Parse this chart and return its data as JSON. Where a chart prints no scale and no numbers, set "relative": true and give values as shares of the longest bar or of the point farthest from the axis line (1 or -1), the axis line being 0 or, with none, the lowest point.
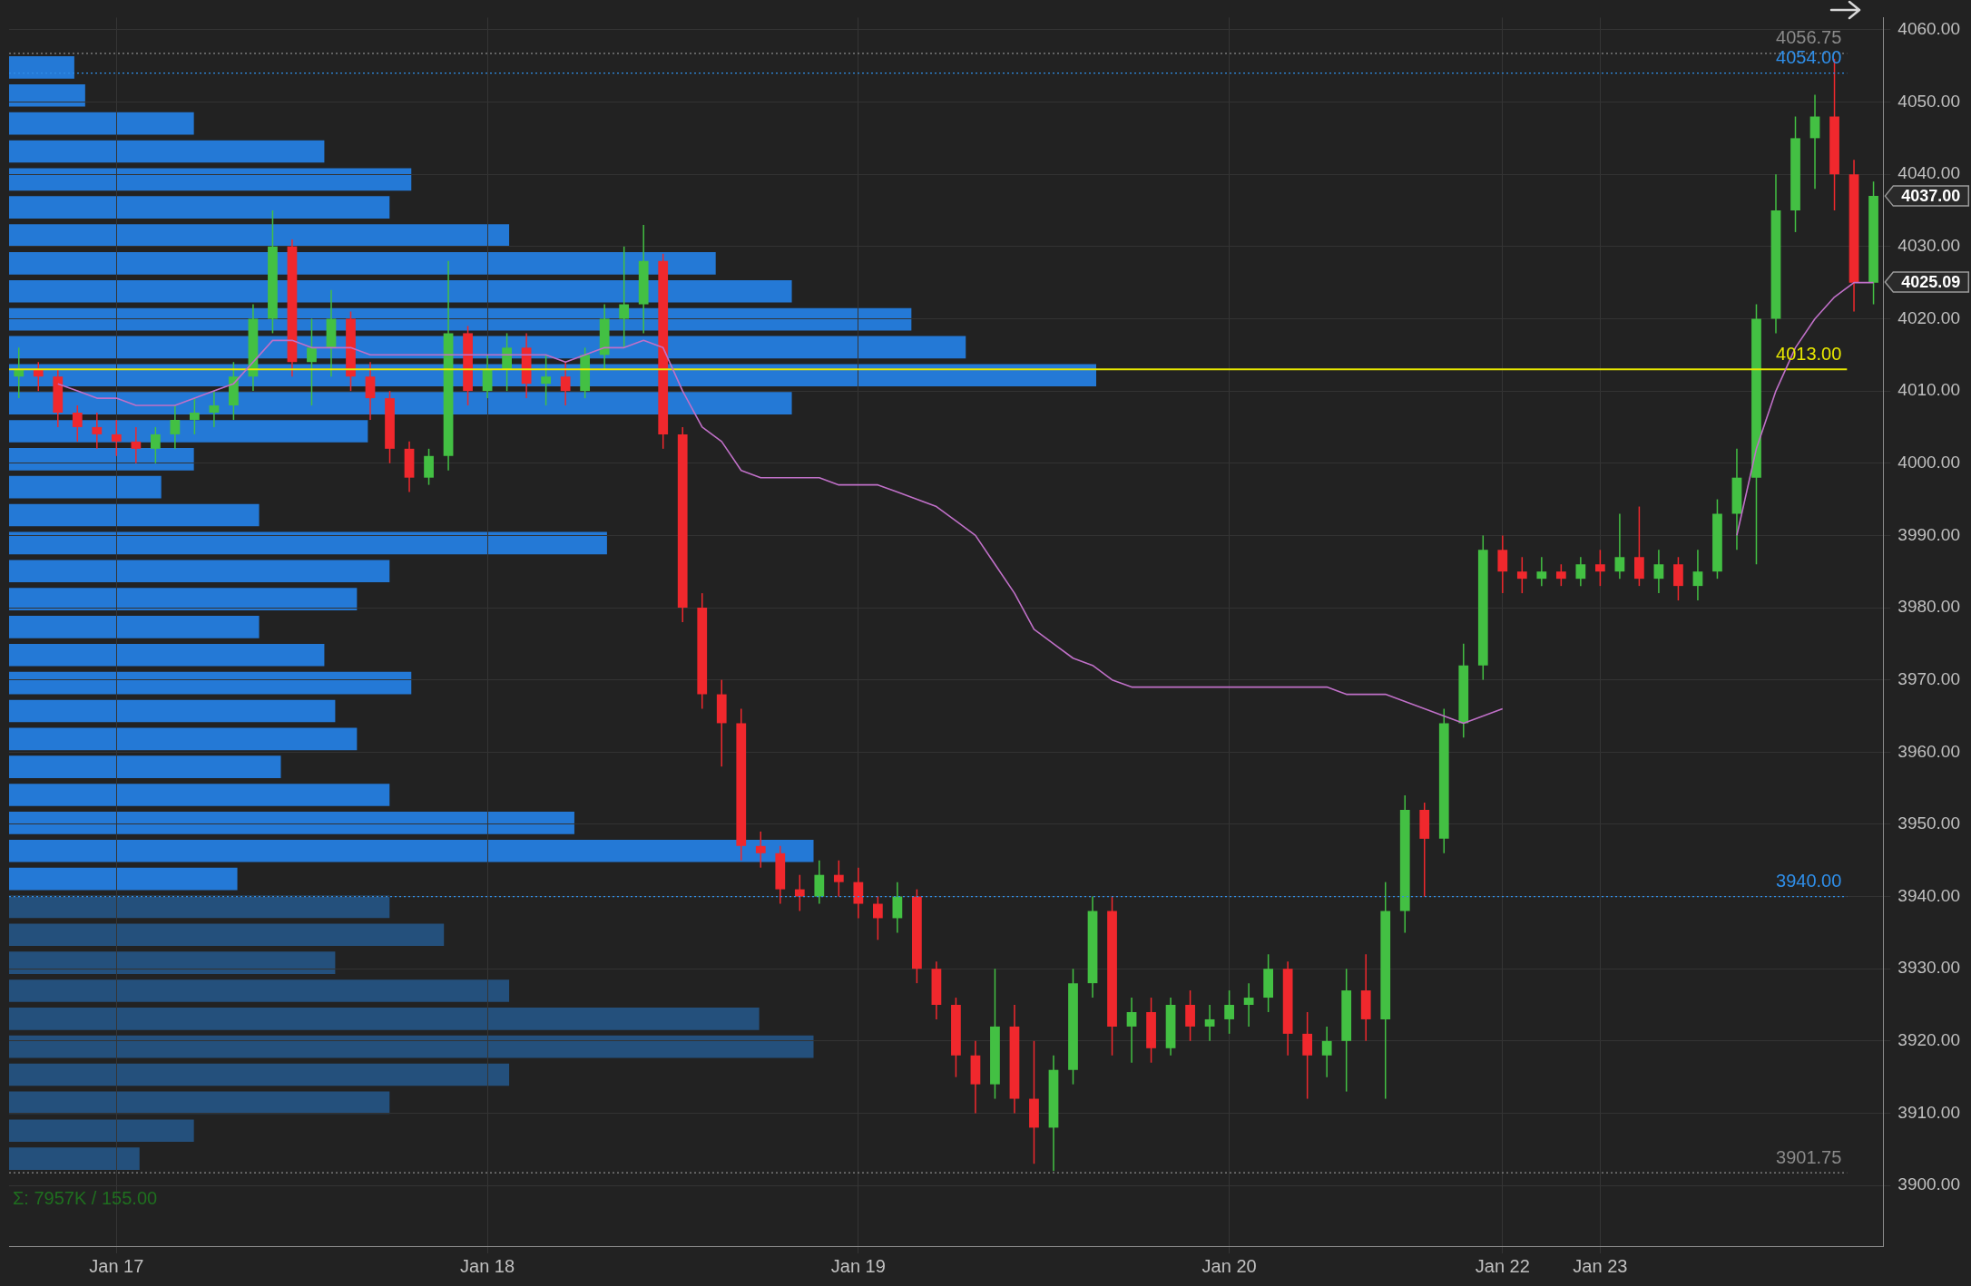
{
  "chart_data": [
    {
      "type": "candlestick",
      "categories": [
        null,
        null,
        null,
        null,
        null,
        "Jan 17",
        null,
        null,
        null,
        null,
        null,
        null,
        null,
        null,
        null,
        null,
        null,
        null,
        null,
        null,
        null,
        null,
        null,
        null,
        "Jan 18",
        null,
        null,
        null,
        null,
        null,
        null,
        null,
        null,
        null,
        null,
        null,
        null,
        null,
        null,
        null,
        null,
        null,
        null,
        "Jan 19",
        null,
        null,
        null,
        null,
        null,
        null,
        null,
        null,
        null,
        null,
        null,
        null,
        null,
        null,
        null,
        null,
        null,
        null,
        "Jan 20",
        null,
        null,
        null,
        null,
        null,
        null,
        null,
        null,
        null,
        null,
        null,
        null,
        null,
        "Jan 22",
        null,
        null,
        null,
        null,
        "Jan 23",
        null,
        null,
        null,
        null,
        null,
        null,
        null,
        null,
        null,
        null,
        null,
        null,
        null,
        null
      ],
      "ohlc": [
        [
          4012,
          4016,
          4009,
          4013
        ],
        [
          4013,
          4014,
          4010,
          4012
        ],
        [
          4012,
          4013,
          4005,
          4007
        ],
        [
          4007,
          4008,
          4003,
          4005
        ],
        [
          4005,
          4007,
          4002,
          4004
        ],
        [
          4004,
          4006,
          4001,
          4003
        ],
        [
          4003,
          4005,
          4000,
          4002
        ],
        [
          4002,
          4005,
          4000,
          4004
        ],
        [
          4004,
          4008,
          4002,
          4006
        ],
        [
          4006,
          4009,
          4004,
          4007
        ],
        [
          4007,
          4010,
          4005,
          4008
        ],
        [
          4008,
          4014,
          4006,
          4012
        ],
        [
          4012,
          4022,
          4010,
          4020
        ],
        [
          4020,
          4035,
          4018,
          4030
        ],
        [
          4030,
          4031,
          4012,
          4014
        ],
        [
          4014,
          4020,
          4008,
          4016
        ],
        [
          4016,
          4024,
          4012,
          4020
        ],
        [
          4020,
          4021,
          4010,
          4012
        ],
        [
          4012,
          4014,
          4006,
          4009
        ],
        [
          4009,
          4010,
          4000,
          4002
        ],
        [
          4002,
          4003,
          3996,
          3998
        ],
        [
          3998,
          4002,
          3997,
          4001
        ],
        [
          4001,
          4028,
          3999,
          4018
        ],
        [
          4018,
          4019,
          4008,
          4010
        ],
        [
          4010,
          4015,
          4009,
          4013
        ],
        [
          4013,
          4018,
          4010,
          4016
        ],
        [
          4016,
          4018,
          4009,
          4011
        ],
        [
          4011,
          4015,
          4008,
          4012
        ],
        [
          4012,
          4014,
          4008,
          4010
        ],
        [
          4010,
          4016,
          4009,
          4015
        ],
        [
          4015,
          4022,
          4013,
          4020
        ],
        [
          4020,
          4030,
          4016,
          4022
        ],
        [
          4022,
          4033,
          4018,
          4028
        ],
        [
          4028,
          4029,
          4002,
          4004
        ],
        [
          4004,
          4005,
          3978,
          3980
        ],
        [
          3980,
          3982,
          3966,
          3968
        ],
        [
          3968,
          3970,
          3958,
          3964
        ],
        [
          3964,
          3966,
          3945,
          3947
        ],
        [
          3947,
          3949,
          3944,
          3946
        ],
        [
          3946,
          3947,
          3939,
          3941
        ],
        [
          3941,
          3943,
          3938,
          3940
        ],
        [
          3940,
          3945,
          3939,
          3943
        ],
        [
          3943,
          3945,
          3940,
          3942
        ],
        [
          3942,
          3944,
          3937,
          3939
        ],
        [
          3939,
          3940,
          3934,
          3937
        ],
        [
          3937,
          3942,
          3935,
          3940
        ],
        [
          3940,
          3941,
          3928,
          3930
        ],
        [
          3930,
          3931,
          3923,
          3925
        ],
        [
          3925,
          3926,
          3915,
          3918
        ],
        [
          3918,
          3920,
          3910,
          3914
        ],
        [
          3914,
          3930,
          3912,
          3922
        ],
        [
          3922,
          3925,
          3910,
          3912
        ],
        [
          3912,
          3920,
          3903,
          3908
        ],
        [
          3908,
          3918,
          3902,
          3916
        ],
        [
          3916,
          3930,
          3914,
          3928
        ],
        [
          3928,
          3940,
          3926,
          3938
        ],
        [
          3938,
          3940,
          3918,
          3922
        ],
        [
          3922,
          3926,
          3917,
          3924
        ],
        [
          3924,
          3926,
          3917,
          3919
        ],
        [
          3919,
          3926,
          3918,
          3925
        ],
        [
          3925,
          3927,
          3920,
          3922
        ],
        [
          3922,
          3925,
          3920,
          3923
        ],
        [
          3923,
          3927,
          3921,
          3925
        ],
        [
          3925,
          3928,
          3922,
          3926
        ],
        [
          3926,
          3932,
          3924,
          3930
        ],
        [
          3930,
          3931,
          3918,
          3921
        ],
        [
          3921,
          3924,
          3912,
          3918
        ],
        [
          3918,
          3922,
          3915,
          3920
        ],
        [
          3920,
          3930,
          3913,
          3927
        ],
        [
          3927,
          3932,
          3920,
          3923
        ],
        [
          3923,
          3942,
          3912,
          3938
        ],
        [
          3938,
          3954,
          3935,
          3952
        ],
        [
          3952,
          3953,
          3940,
          3948
        ],
        [
          3948,
          3966,
          3946,
          3964
        ],
        [
          3964,
          3975,
          3962,
          3972
        ],
        [
          3972,
          3990,
          3970,
          3988
        ],
        [
          3988,
          3990,
          3982,
          3985
        ],
        [
          3985,
          3987,
          3982,
          3984
        ],
        [
          3984,
          3987,
          3983,
          3985
        ],
        [
          3985,
          3986,
          3983,
          3984
        ],
        [
          3984,
          3987,
          3983,
          3986
        ],
        [
          3986,
          3988,
          3983,
          3985
        ],
        [
          3985,
          3993,
          3984,
          3987
        ],
        [
          3987,
          3994,
          3983,
          3984
        ],
        [
          3984,
          3988,
          3982,
          3986
        ],
        [
          3986,
          3987,
          3981,
          3983
        ],
        [
          3983,
          3988,
          3981,
          3985
        ],
        [
          3985,
          3995,
          3984,
          3993
        ],
        [
          3993,
          4002,
          3988,
          3998
        ],
        [
          3998,
          4022,
          3986,
          4020
        ],
        [
          4020,
          4040,
          4018,
          4035
        ],
        [
          4035,
          4048,
          4032,
          4045
        ],
        [
          4045,
          4051,
          4038,
          4048
        ],
        [
          4048,
          4056,
          4035,
          4040
        ],
        [
          4040,
          4042,
          4021,
          4025
        ],
        [
          4025,
          4039,
          4022,
          4037
        ]
      ],
      "series": [
        {
          "type": "line",
          "color": "#c070c8",
          "values": [
            null,
            null,
            4011,
            4010,
            4009,
            4009,
            4008,
            4008,
            4008,
            4009,
            4010,
            4011,
            4014,
            4017,
            4017,
            4016,
            4016,
            4016,
            4015,
            4015,
            4015,
            4015,
            4015,
            4015,
            4015,
            4015,
            4015,
            4015,
            4014,
            4015,
            4016,
            4016,
            4017,
            4016,
            4010,
            4005,
            4003,
            3999,
            3998,
            3998,
            3998,
            3998,
            3997,
            3997,
            3997,
            3996,
            3995,
            3994,
            3992,
            3990,
            3986,
            3982,
            3977,
            3975,
            3973,
            3972,
            3970,
            3969,
            3969,
            3969,
            3969,
            3969,
            3969,
            3969,
            3969,
            3969,
            3969,
            3969,
            3968,
            3968,
            3968,
            3967,
            3966,
            3965,
            3964,
            3965,
            3966,
            null,
            null,
            null,
            null,
            null,
            null,
            null,
            null,
            null,
            null,
            null,
            3990,
            4002,
            4010,
            4016,
            4020,
            4023,
            4025,
            4025
          ]
        }
      ],
      "ylim": [
        3891.6,
        4061.7
      ],
      "yticks": [
        {
          "value": 3900,
          "label": "3900.00"
        },
        {
          "value": 3910,
          "label": "3910.00"
        },
        {
          "value": 3920,
          "label": "3920.00"
        },
        {
          "value": 3930,
          "label": "3930.00"
        },
        {
          "value": 3940,
          "label": "3940.00"
        },
        {
          "value": 3950,
          "label": "3950.00"
        },
        {
          "value": 3960,
          "label": "3960.00"
        },
        {
          "value": 3970,
          "label": "3970.00"
        },
        {
          "value": 3980,
          "label": "3980.00"
        },
        {
          "value": 3990,
          "label": "3990.00"
        },
        {
          "value": 4000,
          "label": "4000.00"
        },
        {
          "value": 4010,
          "label": "4010.00"
        },
        {
          "value": 4020,
          "label": "4020.00"
        },
        {
          "value": 4030,
          "label": "4030.00"
        },
        {
          "value": 4040,
          "label": "4040.00"
        },
        {
          "value": 4050,
          "label": "4050.00"
        },
        {
          "value": 4060,
          "label": "4060.00"
        }
      ],
      "grid": true,
      "ref_lines": [
        {
          "axis": "y",
          "value": 4056.75,
          "label": "4056.75",
          "color": "#8a8a8a",
          "line_style": "dotted"
        },
        {
          "axis": "y",
          "value": 4054,
          "label": "4054.00",
          "color": "#2f8ee8",
          "line_style": "dotted"
        },
        {
          "axis": "y",
          "value": 4013,
          "label": "4013.00",
          "color": "#e8e800",
          "line_style": "solid"
        },
        {
          "axis": "y",
          "value": 3940,
          "label": "3940.00",
          "color": "#2f8ee8",
          "line_style": "dotted"
        },
        {
          "axis": "y",
          "value": 3901.75,
          "label": "3901.75",
          "color": "#8a8a8a",
          "line_style": "dotted"
        }
      ],
      "annotations": [
        "Σ: 7957K / 155.00",
        "4037.00",
        "4025.09"
      ]
    },
    {
      "type": "bar",
      "orientation": "horizontal",
      "relative": true,
      "categories": [
        null,
        null,
        null,
        null,
        null,
        null,
        null,
        null,
        null,
        null,
        null,
        null,
        null,
        null,
        null,
        null,
        null,
        null,
        null,
        null,
        null,
        null,
        null,
        null,
        null,
        null,
        null,
        null,
        null,
        null,
        null,
        null,
        null,
        null,
        null,
        null,
        null,
        null,
        null,
        null
      ],
      "values": [
        0.06,
        0.07,
        0.17,
        0.29,
        0.37,
        0.35,
        0.46,
        0.65,
        0.72,
        0.83,
        0.88,
        1,
        0.72,
        0.33,
        0.17,
        0.14,
        0.23,
        0.55,
        0.35,
        0.32,
        0.23,
        0.29,
        0.37,
        0.3,
        0.32,
        0.25,
        0.35,
        0.52,
        0.74,
        0.21,
        0.35,
        0.4,
        0.3,
        0.46,
        0.69,
        0.74,
        0.46,
        0.35,
        0.17,
        0.12
      ],
      "colors": [
        "#2479d6",
        "#2479d6",
        "#2479d6",
        "#2479d6",
        "#2479d6",
        "#2479d6",
        "#2479d6",
        "#2479d6",
        "#2479d6",
        "#2479d6",
        "#2479d6",
        "#2479d6",
        "#2479d6",
        "#2479d6",
        "#2479d6",
        "#2479d6",
        "#2479d6",
        "#2479d6",
        "#2479d6",
        "#2479d6",
        "#2479d6",
        "#2479d6",
        "#2479d6",
        "#2479d6",
        "#2479d6",
        "#2479d6",
        "#2479d6",
        "#2479d6",
        "#2479d6",
        "#2479d6",
        "#24507c",
        "#24507c",
        "#24507c",
        "#24507c",
        "#24507c",
        "#24507c",
        "#24507c",
        "#24507c",
        "#24507c",
        "#24507c"
      ]
    }
  ]
}
